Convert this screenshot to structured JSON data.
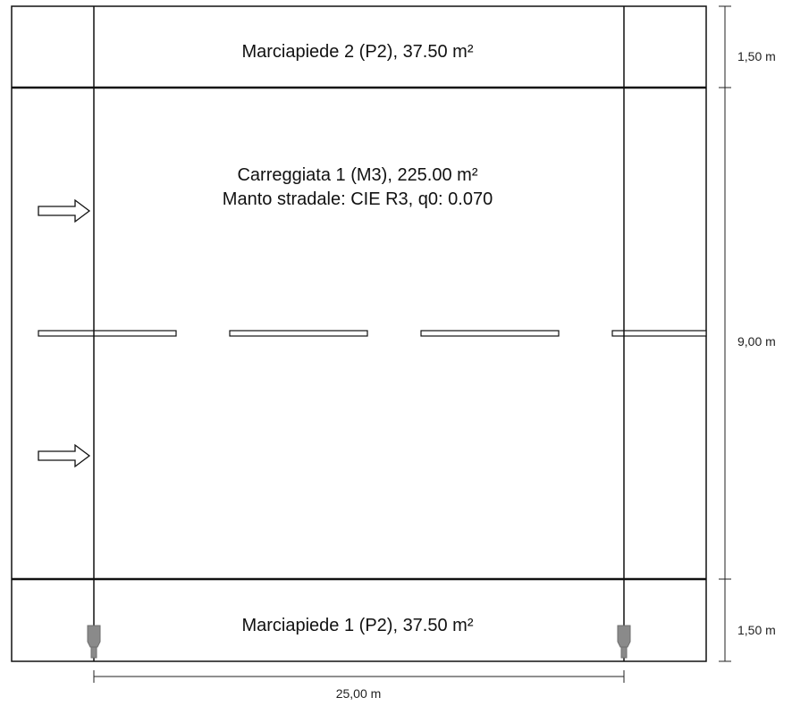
{
  "zones": {
    "sidewalk_top": {
      "label": "Marciapiede 2 (P2), 37.50 m²"
    },
    "roadway": {
      "label": "Carreggiata 1 (M3), 225.00 m²",
      "surface": "Manto stradale: CIE R3, q0: 0.070"
    },
    "sidewalk_bottom": {
      "label": "Marciapiede 1 (P2), 37.50 m²"
    }
  },
  "dimensions": {
    "top_width": "1,50 m",
    "road_width": "9,00 m",
    "bottom_width": "1,50 m",
    "spacing": "25,00 m"
  },
  "colors": {
    "line": "#111111",
    "luminaire": "#8a8a8a"
  },
  "icons": {
    "traffic_direction": "arrow-right-icon",
    "luminaire": "street-light-icon"
  }
}
